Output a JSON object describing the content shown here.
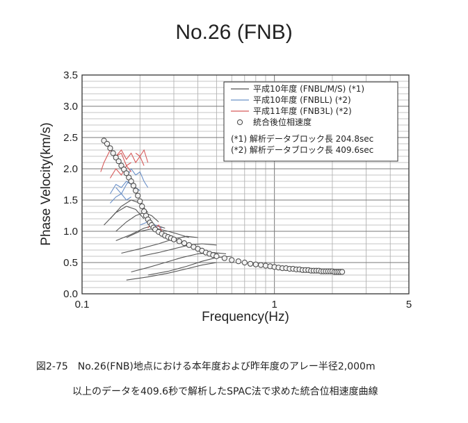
{
  "figure": {
    "title": "No.26 (FNB)",
    "caption_line1": "図2-75　No.26(FNB)地点における本年度および昨年度のアレー半径2,000m",
    "caption_line2": "以上のデータを409.6秒で解析したSPAC法で求めた統合位相速度曲線"
  },
  "chart_data": {
    "type": "line",
    "xlabel": "Frequency(Hz)",
    "ylabel": "Phase Velocity(km/s)",
    "xscale": "log",
    "xlim": [
      0.1,
      5
    ],
    "ylim": [
      0,
      3.5
    ],
    "xticks": [
      {
        "value": 0.1,
        "label": "0.1"
      },
      {
        "value": 1,
        "label": "1"
      },
      {
        "value": 5,
        "label": "5"
      }
    ],
    "yticks": [
      {
        "value": 0.0,
        "label": "0.0"
      },
      {
        "value": 0.5,
        "label": "0.5"
      },
      {
        "value": 1.0,
        "label": "1.0"
      },
      {
        "value": 1.5,
        "label": "1.5"
      },
      {
        "value": 2.0,
        "label": "2.0"
      },
      {
        "value": 2.5,
        "label": "2.5"
      },
      {
        "value": 3.0,
        "label": "3.0"
      },
      {
        "value": 3.5,
        "label": "3.5"
      }
    ],
    "grid": true,
    "legend_position": "top-right",
    "legend": [
      {
        "label": "平成10年度 (FNBL/M/S) (*1)",
        "kind": "line",
        "color": "#555555"
      },
      {
        "label": "平成10年度 (FNBLL) (*2)",
        "kind": "line",
        "color": "#6a90c8"
      },
      {
        "label": "平成11年度 (FNB3L) (*2)",
        "kind": "line",
        "color": "#d65a5a"
      },
      {
        "label": "統合後位相速度",
        "kind": "marker",
        "color": "#444444"
      }
    ],
    "notes": [
      "(*1) 解析データブロック長 204.8sec",
      "(*2) 解析データブロック長 409.6sec"
    ],
    "series": [
      {
        "group": 0,
        "x": [
          0.13,
          0.15,
          0.17,
          0.19,
          0.21
        ],
        "y": [
          1.1,
          1.3,
          1.4,
          1.35,
          1.2
        ]
      },
      {
        "group": 0,
        "x": [
          0.14,
          0.16,
          0.18,
          0.2,
          0.22
        ],
        "y": [
          1.2,
          1.4,
          1.5,
          1.45,
          1.3
        ]
      },
      {
        "group": 0,
        "x": [
          0.15,
          0.17,
          0.19,
          0.21,
          0.23,
          0.25
        ],
        "y": [
          1.0,
          1.15,
          1.25,
          1.3,
          1.25,
          1.15
        ]
      },
      {
        "group": 0,
        "x": [
          0.15,
          0.18,
          0.21,
          0.24,
          0.27
        ],
        "y": [
          0.85,
          0.95,
          1.05,
          1.1,
          1.05
        ]
      },
      {
        "group": 0,
        "x": [
          0.17,
          0.2,
          0.24,
          0.28,
          0.32,
          0.36
        ],
        "y": [
          0.9,
          1.0,
          1.05,
          1.0,
          0.95,
          0.9
        ]
      },
      {
        "group": 0,
        "x": [
          0.16,
          0.2,
          0.25,
          0.3,
          0.35,
          0.4
        ],
        "y": [
          0.65,
          0.72,
          0.8,
          0.88,
          0.92,
          0.9
        ]
      },
      {
        "group": 0,
        "x": [
          0.2,
          0.25,
          0.3,
          0.36,
          0.42,
          0.5
        ],
        "y": [
          0.6,
          0.66,
          0.72,
          0.78,
          0.8,
          0.78
        ]
      },
      {
        "group": 0,
        "x": [
          0.18,
          0.22,
          0.27,
          0.33,
          0.4,
          0.48,
          0.56
        ],
        "y": [
          0.35,
          0.42,
          0.5,
          0.58,
          0.64,
          0.66,
          0.64
        ]
      },
      {
        "group": 0,
        "x": [
          0.22,
          0.28,
          0.35,
          0.42,
          0.5,
          0.6
        ],
        "y": [
          0.3,
          0.36,
          0.44,
          0.52,
          0.58,
          0.6
        ]
      },
      {
        "group": 0,
        "x": [
          0.17,
          0.22,
          0.28,
          0.35,
          0.42,
          0.5
        ],
        "y": [
          0.22,
          0.27,
          0.33,
          0.4,
          0.46,
          0.5
        ]
      },
      {
        "group": 1,
        "x": [
          0.14,
          0.15,
          0.16,
          0.17,
          0.18
        ],
        "y": [
          1.6,
          1.75,
          1.7,
          1.8,
          1.75
        ]
      },
      {
        "group": 1,
        "x": [
          0.15,
          0.16,
          0.17,
          0.18,
          0.19,
          0.2
        ],
        "y": [
          1.7,
          1.6,
          1.75,
          1.85,
          1.7,
          1.65
        ]
      },
      {
        "group": 1,
        "x": [
          0.14,
          0.15,
          0.16,
          0.17,
          0.18
        ],
        "y": [
          1.45,
          1.55,
          1.6,
          1.5,
          1.55
        ]
      },
      {
        "group": 1,
        "x": [
          0.17,
          0.18,
          0.19,
          0.2,
          0.21,
          0.22
        ],
        "y": [
          1.85,
          2.0,
          1.9,
          1.95,
          1.8,
          1.7
        ]
      },
      {
        "group": 1,
        "x": [
          0.2,
          0.22,
          0.24,
          0.26
        ],
        "y": [
          1.1,
          1.15,
          1.1,
          1.05
        ]
      },
      {
        "group": 2,
        "x": [
          0.125,
          0.13,
          0.14,
          0.15,
          0.16,
          0.17,
          0.18
        ],
        "y": [
          1.95,
          2.1,
          2.3,
          2.2,
          2.25,
          2.05,
          2.1
        ]
      },
      {
        "group": 2,
        "x": [
          0.15,
          0.16,
          0.17,
          0.18,
          0.19,
          0.2,
          0.21
        ],
        "y": [
          2.2,
          2.3,
          2.15,
          2.25,
          2.1,
          2.2,
          2.05
        ]
      },
      {
        "group": 2,
        "x": [
          0.19,
          0.2,
          0.21,
          0.22
        ],
        "y": [
          2.25,
          2.2,
          2.3,
          2.1
        ]
      },
      {
        "group": 2,
        "x": [
          0.14,
          0.15,
          0.16,
          0.17,
          0.18
        ],
        "y": [
          1.85,
          2.0,
          1.9,
          2.05,
          1.95
        ]
      },
      {
        "group": 2,
        "x": [
          0.22,
          0.23,
          0.24,
          0.25,
          0.26
        ],
        "y": [
          1.05,
          1.15,
          1.05,
          1.1,
          1.0
        ]
      }
    ],
    "merged": {
      "name": "統合後位相速度",
      "x": [
        0.13,
        0.135,
        0.14,
        0.145,
        0.15,
        0.155,
        0.16,
        0.165,
        0.17,
        0.175,
        0.18,
        0.185,
        0.19,
        0.195,
        0.2,
        0.205,
        0.21,
        0.215,
        0.22,
        0.225,
        0.23,
        0.235,
        0.24,
        0.25,
        0.26,
        0.27,
        0.28,
        0.29,
        0.3,
        0.32,
        0.34,
        0.36,
        0.38,
        0.4,
        0.42,
        0.44,
        0.46,
        0.48,
        0.5,
        0.55,
        0.6,
        0.65,
        0.7,
        0.75,
        0.8,
        0.85,
        0.9,
        0.95,
        1.0,
        1.05,
        1.1,
        1.15,
        1.2,
        1.25,
        1.3,
        1.35,
        1.4,
        1.45,
        1.5,
        1.55,
        1.6,
        1.65,
        1.7,
        1.75,
        1.8,
        1.85,
        1.9,
        1.95,
        2.0,
        2.05,
        2.1,
        2.15,
        2.2,
        2.25
      ],
      "y": [
        2.45,
        2.4,
        2.33,
        2.25,
        2.18,
        2.12,
        2.05,
        1.99,
        1.93,
        1.86,
        1.8,
        1.73,
        1.65,
        1.57,
        1.48,
        1.4,
        1.32,
        1.25,
        1.19,
        1.14,
        1.1,
        1.06,
        1.03,
        0.99,
        0.96,
        0.93,
        0.91,
        0.89,
        0.87,
        0.84,
        0.81,
        0.78,
        0.75,
        0.72,
        0.69,
        0.66,
        0.64,
        0.62,
        0.6,
        0.57,
        0.54,
        0.52,
        0.5,
        0.48,
        0.47,
        0.46,
        0.45,
        0.44,
        0.43,
        0.42,
        0.41,
        0.41,
        0.4,
        0.4,
        0.39,
        0.39,
        0.38,
        0.38,
        0.38,
        0.37,
        0.37,
        0.37,
        0.37,
        0.36,
        0.36,
        0.36,
        0.36,
        0.36,
        0.36,
        0.35,
        0.35,
        0.35,
        0.35,
        0.35
      ]
    }
  }
}
